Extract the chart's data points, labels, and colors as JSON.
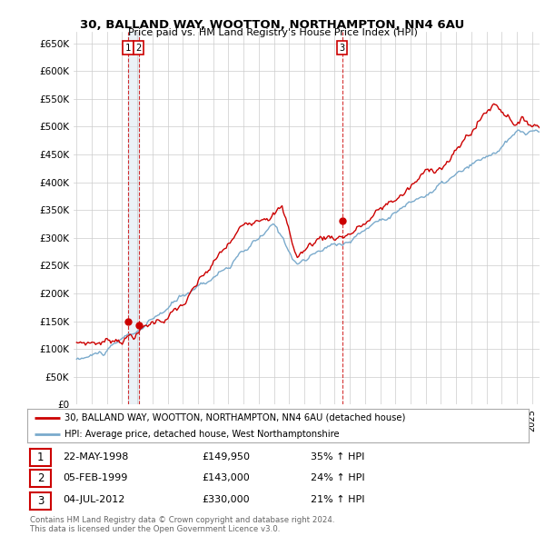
{
  "title": "30, BALLAND WAY, WOOTTON, NORTHAMPTON, NN4 6AU",
  "subtitle": "Price paid vs. HM Land Registry's House Price Index (HPI)",
  "yticks": [
    0,
    50000,
    100000,
    150000,
    200000,
    250000,
    300000,
    350000,
    400000,
    450000,
    500000,
    550000,
    600000,
    650000
  ],
  "ytick_labels": [
    "£0",
    "£50K",
    "£100K",
    "£150K",
    "£200K",
    "£250K",
    "£300K",
    "£350K",
    "£400K",
    "£450K",
    "£500K",
    "£550K",
    "£600K",
    "£650K"
  ],
  "ylim": [
    0,
    670000
  ],
  "xlim_start": 1994.8,
  "xlim_end": 2025.5,
  "background_color": "#ffffff",
  "grid_color": "#cccccc",
  "sale_dates": [
    1998.38,
    1999.09,
    2012.5
  ],
  "sale_prices": [
    149950,
    143000,
    330000
  ],
  "sale_labels": [
    "1",
    "2",
    "3"
  ],
  "legend_line1": "30, BALLAND WAY, WOOTTON, NORTHAMPTON, NN4 6AU (detached house)",
  "legend_line2": "HPI: Average price, detached house, West Northamptonshire",
  "table_rows": [
    [
      "1",
      "22-MAY-1998",
      "£149,950",
      "35% ↑ HPI"
    ],
    [
      "2",
      "05-FEB-1999",
      "£143,000",
      "24% ↑ HPI"
    ],
    [
      "3",
      "04-JUL-2012",
      "£330,000",
      "21% ↑ HPI"
    ]
  ],
  "footer": "Contains HM Land Registry data © Crown copyright and database right 2024.\nThis data is licensed under the Open Government Licence v3.0.",
  "red_color": "#cc0000",
  "blue_color": "#7aaacc"
}
